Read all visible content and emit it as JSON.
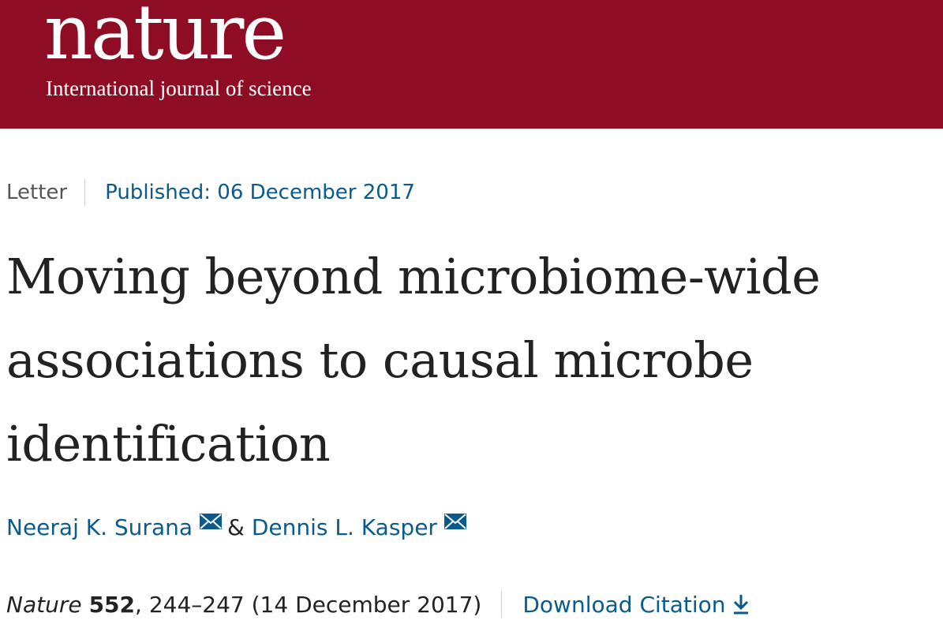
{
  "header": {
    "logo": "nature",
    "tagline": "International journal of science",
    "brand_color": "#8f0d24"
  },
  "article": {
    "type": "Letter",
    "published": "Published: 06 December 2017",
    "title_lines": [
      "Moving beyond microbiome-wide",
      "associations to causal microbe",
      "identification"
    ],
    "authors": [
      {
        "name": "Neeraj K. Surana",
        "icon": "mail-icon"
      },
      {
        "name": "Dennis L. Kasper",
        "icon": "mail-icon"
      }
    ],
    "author_separator": "&",
    "citation": {
      "journal": "Nature",
      "volume": "552",
      "pages": ", 244–247 (14 December 2017)"
    },
    "download_label": "Download Citation",
    "download_icon": "download-icon",
    "link_color": "#0a5b8c"
  }
}
